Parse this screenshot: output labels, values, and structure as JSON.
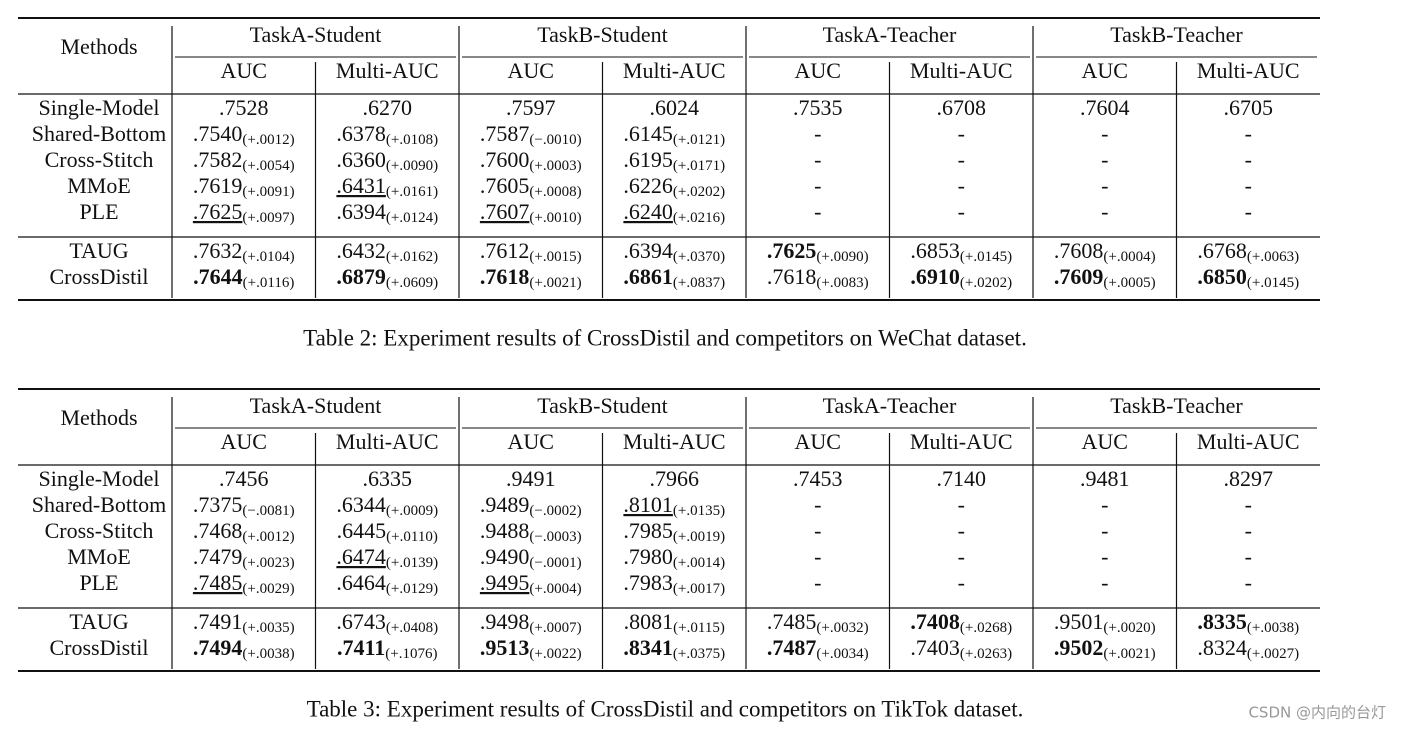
{
  "tables": [
    {
      "header": {
        "methods": "Methods",
        "groups": [
          "TaskA-Student",
          "TaskB-Student",
          "TaskA-Teacher",
          "TaskB-Teacher"
        ],
        "subcols": [
          "AUC",
          "Multi-AUC",
          "AUC",
          "Multi-AUC",
          "AUC",
          "Multi-AUC",
          "AUC",
          "Multi-AUC"
        ]
      },
      "sections": [
        [
          {
            "method": "Single-Model",
            "cells": [
              {
                "v": ".7528"
              },
              {
                "v": ".6270"
              },
              {
                "v": ".7597"
              },
              {
                "v": ".6024"
              },
              {
                "v": ".7535"
              },
              {
                "v": ".6708"
              },
              {
                "v": ".7604"
              },
              {
                "v": ".6705"
              }
            ]
          },
          {
            "method": "Shared-Bottom",
            "cells": [
              {
                "v": ".7540",
                "d": "(+.0012)"
              },
              {
                "v": ".6378",
                "d": "(+.0108)"
              },
              {
                "v": ".7587",
                "d": "(−.0010)"
              },
              {
                "v": ".6145",
                "d": "(+.0121)"
              },
              {
                "v": "-"
              },
              {
                "v": "-"
              },
              {
                "v": "-"
              },
              {
                "v": "-"
              }
            ]
          },
          {
            "method": "Cross-Stitch",
            "cells": [
              {
                "v": ".7582",
                "d": "(+.0054)"
              },
              {
                "v": ".6360",
                "d": "(+.0090)"
              },
              {
                "v": ".7600",
                "d": "(+.0003)"
              },
              {
                "v": ".6195",
                "d": "(+.0171)"
              },
              {
                "v": "-"
              },
              {
                "v": "-"
              },
              {
                "v": "-"
              },
              {
                "v": "-"
              }
            ]
          },
          {
            "method": "MMoE",
            "cells": [
              {
                "v": ".7619",
                "d": "(+.0091)"
              },
              {
                "v": ".6431",
                "d": "(+.0161)",
                "underline": true
              },
              {
                "v": ".7605",
                "d": "(+.0008)"
              },
              {
                "v": ".6226",
                "d": "(+.0202)"
              },
              {
                "v": "-"
              },
              {
                "v": "-"
              },
              {
                "v": "-"
              },
              {
                "v": "-"
              }
            ]
          },
          {
            "method": "PLE",
            "cells": [
              {
                "v": ".7625",
                "d": "(+.0097)",
                "underline": true
              },
              {
                "v": ".6394",
                "d": "(+.0124)"
              },
              {
                "v": ".7607",
                "d": "(+.0010)",
                "underline": true
              },
              {
                "v": ".6240",
                "d": "(+.0216)",
                "underline": true
              },
              {
                "v": "-"
              },
              {
                "v": "-"
              },
              {
                "v": "-"
              },
              {
                "v": "-"
              }
            ]
          }
        ],
        [
          {
            "method": "TAUG",
            "cells": [
              {
                "v": ".7632",
                "d": "(+.0104)"
              },
              {
                "v": ".6432",
                "d": "(+.0162)"
              },
              {
                "v": ".7612",
                "d": "(+.0015)"
              },
              {
                "v": ".6394",
                "d": "(+.0370)"
              },
              {
                "v": ".7625",
                "d": "(+.0090)",
                "bold": true
              },
              {
                "v": ".6853",
                "d": "(+.0145)"
              },
              {
                "v": ".7608",
                "d": "(+.0004)"
              },
              {
                "v": ".6768",
                "d": "(+.0063)"
              }
            ]
          },
          {
            "method": "CrossDistil",
            "cells": [
              {
                "v": ".7644",
                "d": "(+.0116)",
                "bold": true
              },
              {
                "v": ".6879",
                "d": "(+.0609)",
                "bold": true
              },
              {
                "v": ".7618",
                "d": "(+.0021)",
                "bold": true
              },
              {
                "v": ".6861",
                "d": "(+.0837)",
                "bold": true
              },
              {
                "v": ".7618",
                "d": "(+.0083)"
              },
              {
                "v": ".6910",
                "d": "(+.0202)",
                "bold": true
              },
              {
                "v": ".7609",
                "d": "(+.0005)",
                "bold": true
              },
              {
                "v": ".6850",
                "d": "(+.0145)",
                "bold": true
              }
            ]
          }
        ]
      ],
      "caption": "Table 2: Experiment results of CrossDistil and competitors on WeChat dataset."
    },
    {
      "header": {
        "methods": "Methods",
        "groups": [
          "TaskA-Student",
          "TaskB-Student",
          "TaskA-Teacher",
          "TaskB-Teacher"
        ],
        "subcols": [
          "AUC",
          "Multi-AUC",
          "AUC",
          "Multi-AUC",
          "AUC",
          "Multi-AUC",
          "AUC",
          "Multi-AUC"
        ]
      },
      "sections": [
        [
          {
            "method": "Single-Model",
            "cells": [
              {
                "v": ".7456"
              },
              {
                "v": ".6335"
              },
              {
                "v": ".9491"
              },
              {
                "v": ".7966"
              },
              {
                "v": ".7453"
              },
              {
                "v": ".7140"
              },
              {
                "v": ".9481"
              },
              {
                "v": ".8297"
              }
            ]
          },
          {
            "method": "Shared-Bottom",
            "cells": [
              {
                "v": ".7375",
                "d": "(−.0081)"
              },
              {
                "v": ".6344",
                "d": "(+.0009)"
              },
              {
                "v": ".9489",
                "d": "(−.0002)"
              },
              {
                "v": ".8101",
                "d": "(+.0135)",
                "underline": true
              },
              {
                "v": "-"
              },
              {
                "v": "-"
              },
              {
                "v": "-"
              },
              {
                "v": "-"
              }
            ]
          },
          {
            "method": "Cross-Stitch",
            "cells": [
              {
                "v": ".7468",
                "d": "(+.0012)"
              },
              {
                "v": ".6445",
                "d": "(+.0110)"
              },
              {
                "v": ".9488",
                "d": "(−.0003)"
              },
              {
                "v": ".7985",
                "d": "(+.0019)"
              },
              {
                "v": "-"
              },
              {
                "v": "-"
              },
              {
                "v": "-"
              },
              {
                "v": "-"
              }
            ]
          },
          {
            "method": "MMoE",
            "cells": [
              {
                "v": ".7479",
                "d": "(+.0023)"
              },
              {
                "v": ".6474",
                "d": "(+.0139)",
                "underline": true
              },
              {
                "v": ".9490",
                "d": "(−.0001)"
              },
              {
                "v": ".7980",
                "d": "(+.0014)"
              },
              {
                "v": "-"
              },
              {
                "v": "-"
              },
              {
                "v": "-"
              },
              {
                "v": "-"
              }
            ]
          },
          {
            "method": "PLE",
            "cells": [
              {
                "v": ".7485",
                "d": "(+.0029)",
                "underline": true
              },
              {
                "v": ".6464",
                "d": "(+.0129)"
              },
              {
                "v": ".9495",
                "d": "(+.0004)",
                "underline": true
              },
              {
                "v": ".7983",
                "d": "(+.0017)"
              },
              {
                "v": "-"
              },
              {
                "v": "-"
              },
              {
                "v": "-"
              },
              {
                "v": "-"
              }
            ]
          }
        ],
        [
          {
            "method": "TAUG",
            "cells": [
              {
                "v": ".7491",
                "d": "(+.0035)"
              },
              {
                "v": ".6743",
                "d": "(+.0408)"
              },
              {
                "v": ".9498",
                "d": "(+.0007)"
              },
              {
                "v": ".8081",
                "d": "(+.0115)"
              },
              {
                "v": ".7485",
                "d": "(+.0032)"
              },
              {
                "v": ".7408",
                "d": "(+.0268)",
                "bold": true
              },
              {
                "v": ".9501",
                "d": "(+.0020)"
              },
              {
                "v": ".8335",
                "d": "(+.0038)",
                "bold": true
              }
            ]
          },
          {
            "method": "CrossDistil",
            "cells": [
              {
                "v": ".7494",
                "d": "(+.0038)",
                "bold": true
              },
              {
                "v": ".7411",
                "d": "(+.1076)",
                "bold": true
              },
              {
                "v": ".9513",
                "d": "(+.0022)",
                "bold": true
              },
              {
                "v": ".8341",
                "d": "(+.0375)",
                "bold": true
              },
              {
                "v": ".7487",
                "d": "(+.0034)",
                "bold": true
              },
              {
                "v": ".7403",
                "d": "(+.0263)"
              },
              {
                "v": ".9502",
                "d": "(+.0021)",
                "bold": true
              },
              {
                "v": ".8324",
                "d": "(+.0027)"
              }
            ]
          }
        ]
      ],
      "caption": "Table 3: Experiment results of CrossDistil and competitors on TikTok dataset."
    }
  ],
  "watermark": "CSDN @内向的台灯"
}
